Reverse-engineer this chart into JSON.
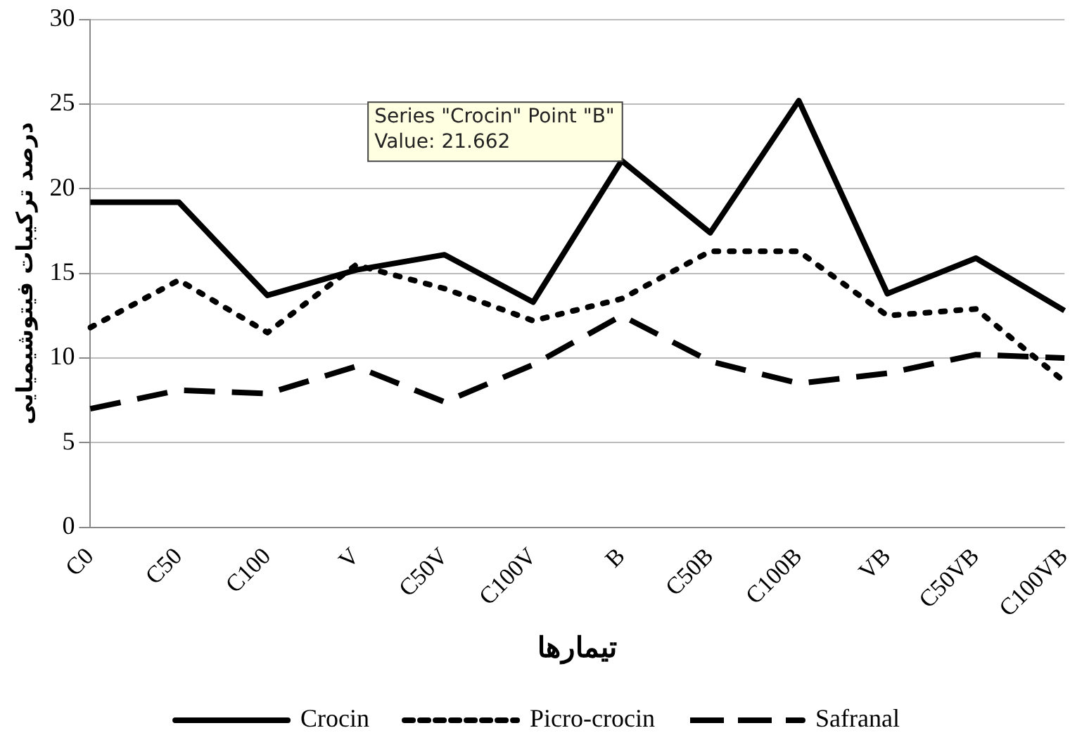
{
  "chart_data": {
    "type": "line",
    "ylabel": "درصد ترکیبات فیتوشیمیایی",
    "xlabel": "تیمارها",
    "categories": [
      "C0",
      "C50",
      "C100",
      "V",
      "C50V",
      "C100V",
      "B",
      "C50B",
      "C100B",
      "VB",
      "C50VB",
      "C100VB"
    ],
    "series": [
      {
        "name": "Crocin",
        "color": "#000000",
        "line_style": "solid",
        "values": [
          19.2,
          19.2,
          13.7,
          15.2,
          16.1,
          13.3,
          21.662,
          17.4,
          25.2,
          13.8,
          15.9,
          12.8
        ]
      },
      {
        "name": "Picro-crocin",
        "color": "#000000",
        "line_style": "dotted",
        "values": [
          11.8,
          14.6,
          11.5,
          15.5,
          14.1,
          12.2,
          13.5,
          16.3,
          16.3,
          12.5,
          12.9,
          8.6
        ]
      },
      {
        "name": "Safranal",
        "color": "#000000",
        "line_style": "dashed",
        "values": [
          7.0,
          8.1,
          7.9,
          9.5,
          7.4,
          9.6,
          12.5,
          9.8,
          8.5,
          9.1,
          10.2,
          10.0
        ]
      }
    ],
    "ylim": [
      0,
      30
    ],
    "yticks": [
      0,
      5,
      10,
      15,
      20,
      25,
      30
    ],
    "grid": "y",
    "legend": "bottom",
    "marker": "none",
    "annotations": [
      {
        "text": "Series \"Crocin\" Point \"B\"\nValue: 21.662",
        "x": "B",
        "y": 21.662
      }
    ]
  }
}
